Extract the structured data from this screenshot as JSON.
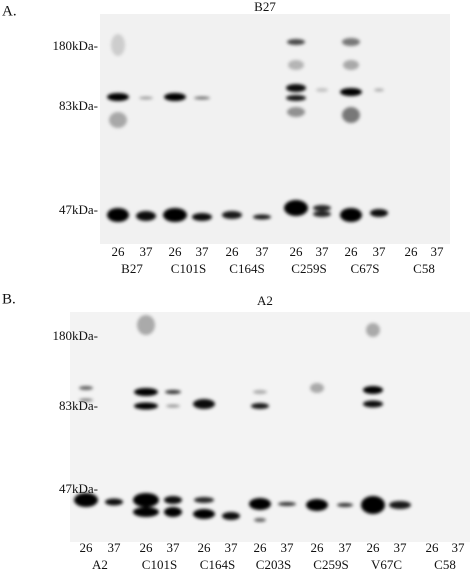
{
  "panels": [
    {
      "label": "A.",
      "title": "B27",
      "markers": [
        "180kDa-",
        "83kDa-",
        "47kDa-"
      ],
      "lanes": [
        {
          "name": "B27",
          "temps": [
            "26",
            "37"
          ]
        },
        {
          "name": "C101S",
          "temps": [
            "26",
            "37"
          ]
        },
        {
          "name": "C164S",
          "temps": [
            "26",
            "37"
          ]
        },
        {
          "name": "C259S",
          "temps": [
            "26",
            "37"
          ]
        },
        {
          "name": "C67S",
          "temps": [
            "26",
            "37"
          ]
        },
        {
          "name": "C58",
          "temps": [
            "26",
            "37"
          ]
        }
      ]
    },
    {
      "label": "B.",
      "title": "A2",
      "markers": [
        "180kDa-",
        "83kDa-",
        "47kDa-"
      ],
      "lanes": [
        {
          "name": "A2",
          "temps": [
            "26",
            "37"
          ]
        },
        {
          "name": "C101S",
          "temps": [
            "26",
            "37"
          ]
        },
        {
          "name": "C164S",
          "temps": [
            "26",
            "37"
          ]
        },
        {
          "name": "C203S",
          "temps": [
            "26",
            "37"
          ]
        },
        {
          "name": "C259S",
          "temps": [
            "26",
            "37"
          ]
        },
        {
          "name": "V67C",
          "temps": [
            "26",
            "37"
          ]
        },
        {
          "name": "C58",
          "temps": [
            "26",
            "37"
          ]
        }
      ]
    }
  ]
}
